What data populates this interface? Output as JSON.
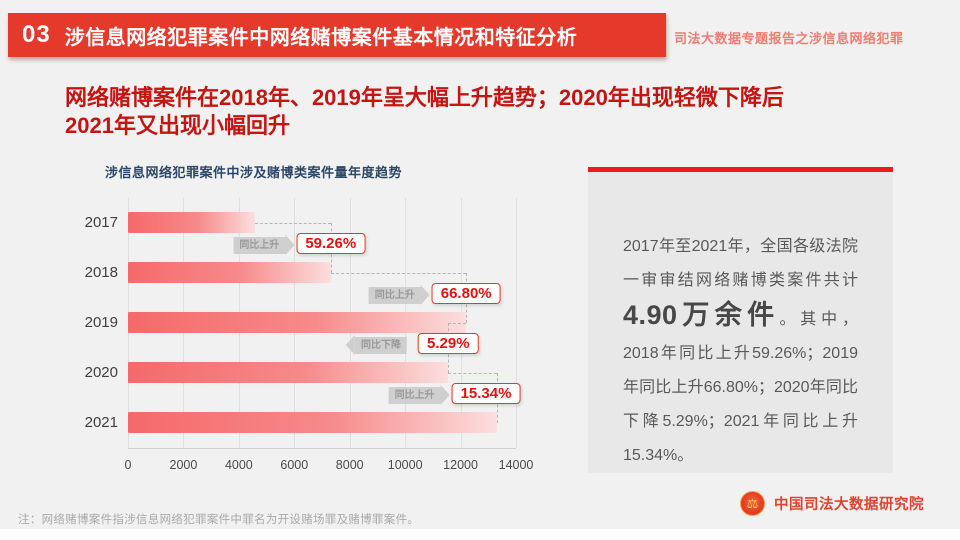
{
  "banner": {
    "number": "03",
    "title": "涉信息网络犯罪案件中网络赌博案件基本情况和特征分析",
    "subtitle": "司法大数据专题报告之涉信息网络犯罪"
  },
  "headline": {
    "line1": "网络赌博案件在2018年、2019年呈大幅上升趋势；2020年出现轻微下降后",
    "line2": "2021年又出现小幅回升"
  },
  "chart_data": {
    "type": "bar",
    "orientation": "horizontal",
    "title": "涉信息网络犯罪案件中涉及赌博类案件量年度趋势",
    "categories": [
      "2017",
      "2018",
      "2019",
      "2020",
      "2021"
    ],
    "values": [
      4594,
      7316,
      12203,
      11558,
      13331
    ],
    "xlim": [
      0,
      14000
    ],
    "x_ticks": [
      0,
      2000,
      4000,
      6000,
      8000,
      10000,
      12000,
      14000
    ],
    "grid": true,
    "legend": "none",
    "bar_color_start": "#f5696a",
    "bar_color_mid": "#f78a8a",
    "bar_color_end": "#fcdede",
    "callouts": [
      {
        "after_index": 0,
        "label": "同比上升",
        "value": "59.26%",
        "direction": "up"
      },
      {
        "after_index": 1,
        "label": "同比上升",
        "value": "66.80%",
        "direction": "up"
      },
      {
        "after_index": 2,
        "label": "同比下降",
        "value": "5.29%",
        "direction": "down"
      },
      {
        "after_index": 3,
        "label": "同比上升",
        "value": "15.34%",
        "direction": "up"
      }
    ]
  },
  "panel": {
    "intro": "2017年至2021年，全国各级法院一审审结网络赌博类案件共计",
    "highlight": "4.90万余件",
    "detail": "。其中，2018年同比上升59.26%；2019年同比上升66.80%；2020年同比下降5.29%；2021年同比上升15.34%。"
  },
  "note": "注：网络赌博案件指涉信息网络犯罪案件中罪名为开设赌场罪及赌博罪案件。",
  "footer": {
    "org_name": "中国司法大数据研究院",
    "emblem_glyph": "⚖"
  },
  "colors": {
    "banner_bg": "#e5392b",
    "headline_red": "#c41511",
    "percent_red": "#e8100e",
    "panel_line_red": "#ee1b1b",
    "panel_bg": "#e9e8e8",
    "page_bg": "#f2f1f1",
    "chart_title_blue": "#2c4868"
  }
}
